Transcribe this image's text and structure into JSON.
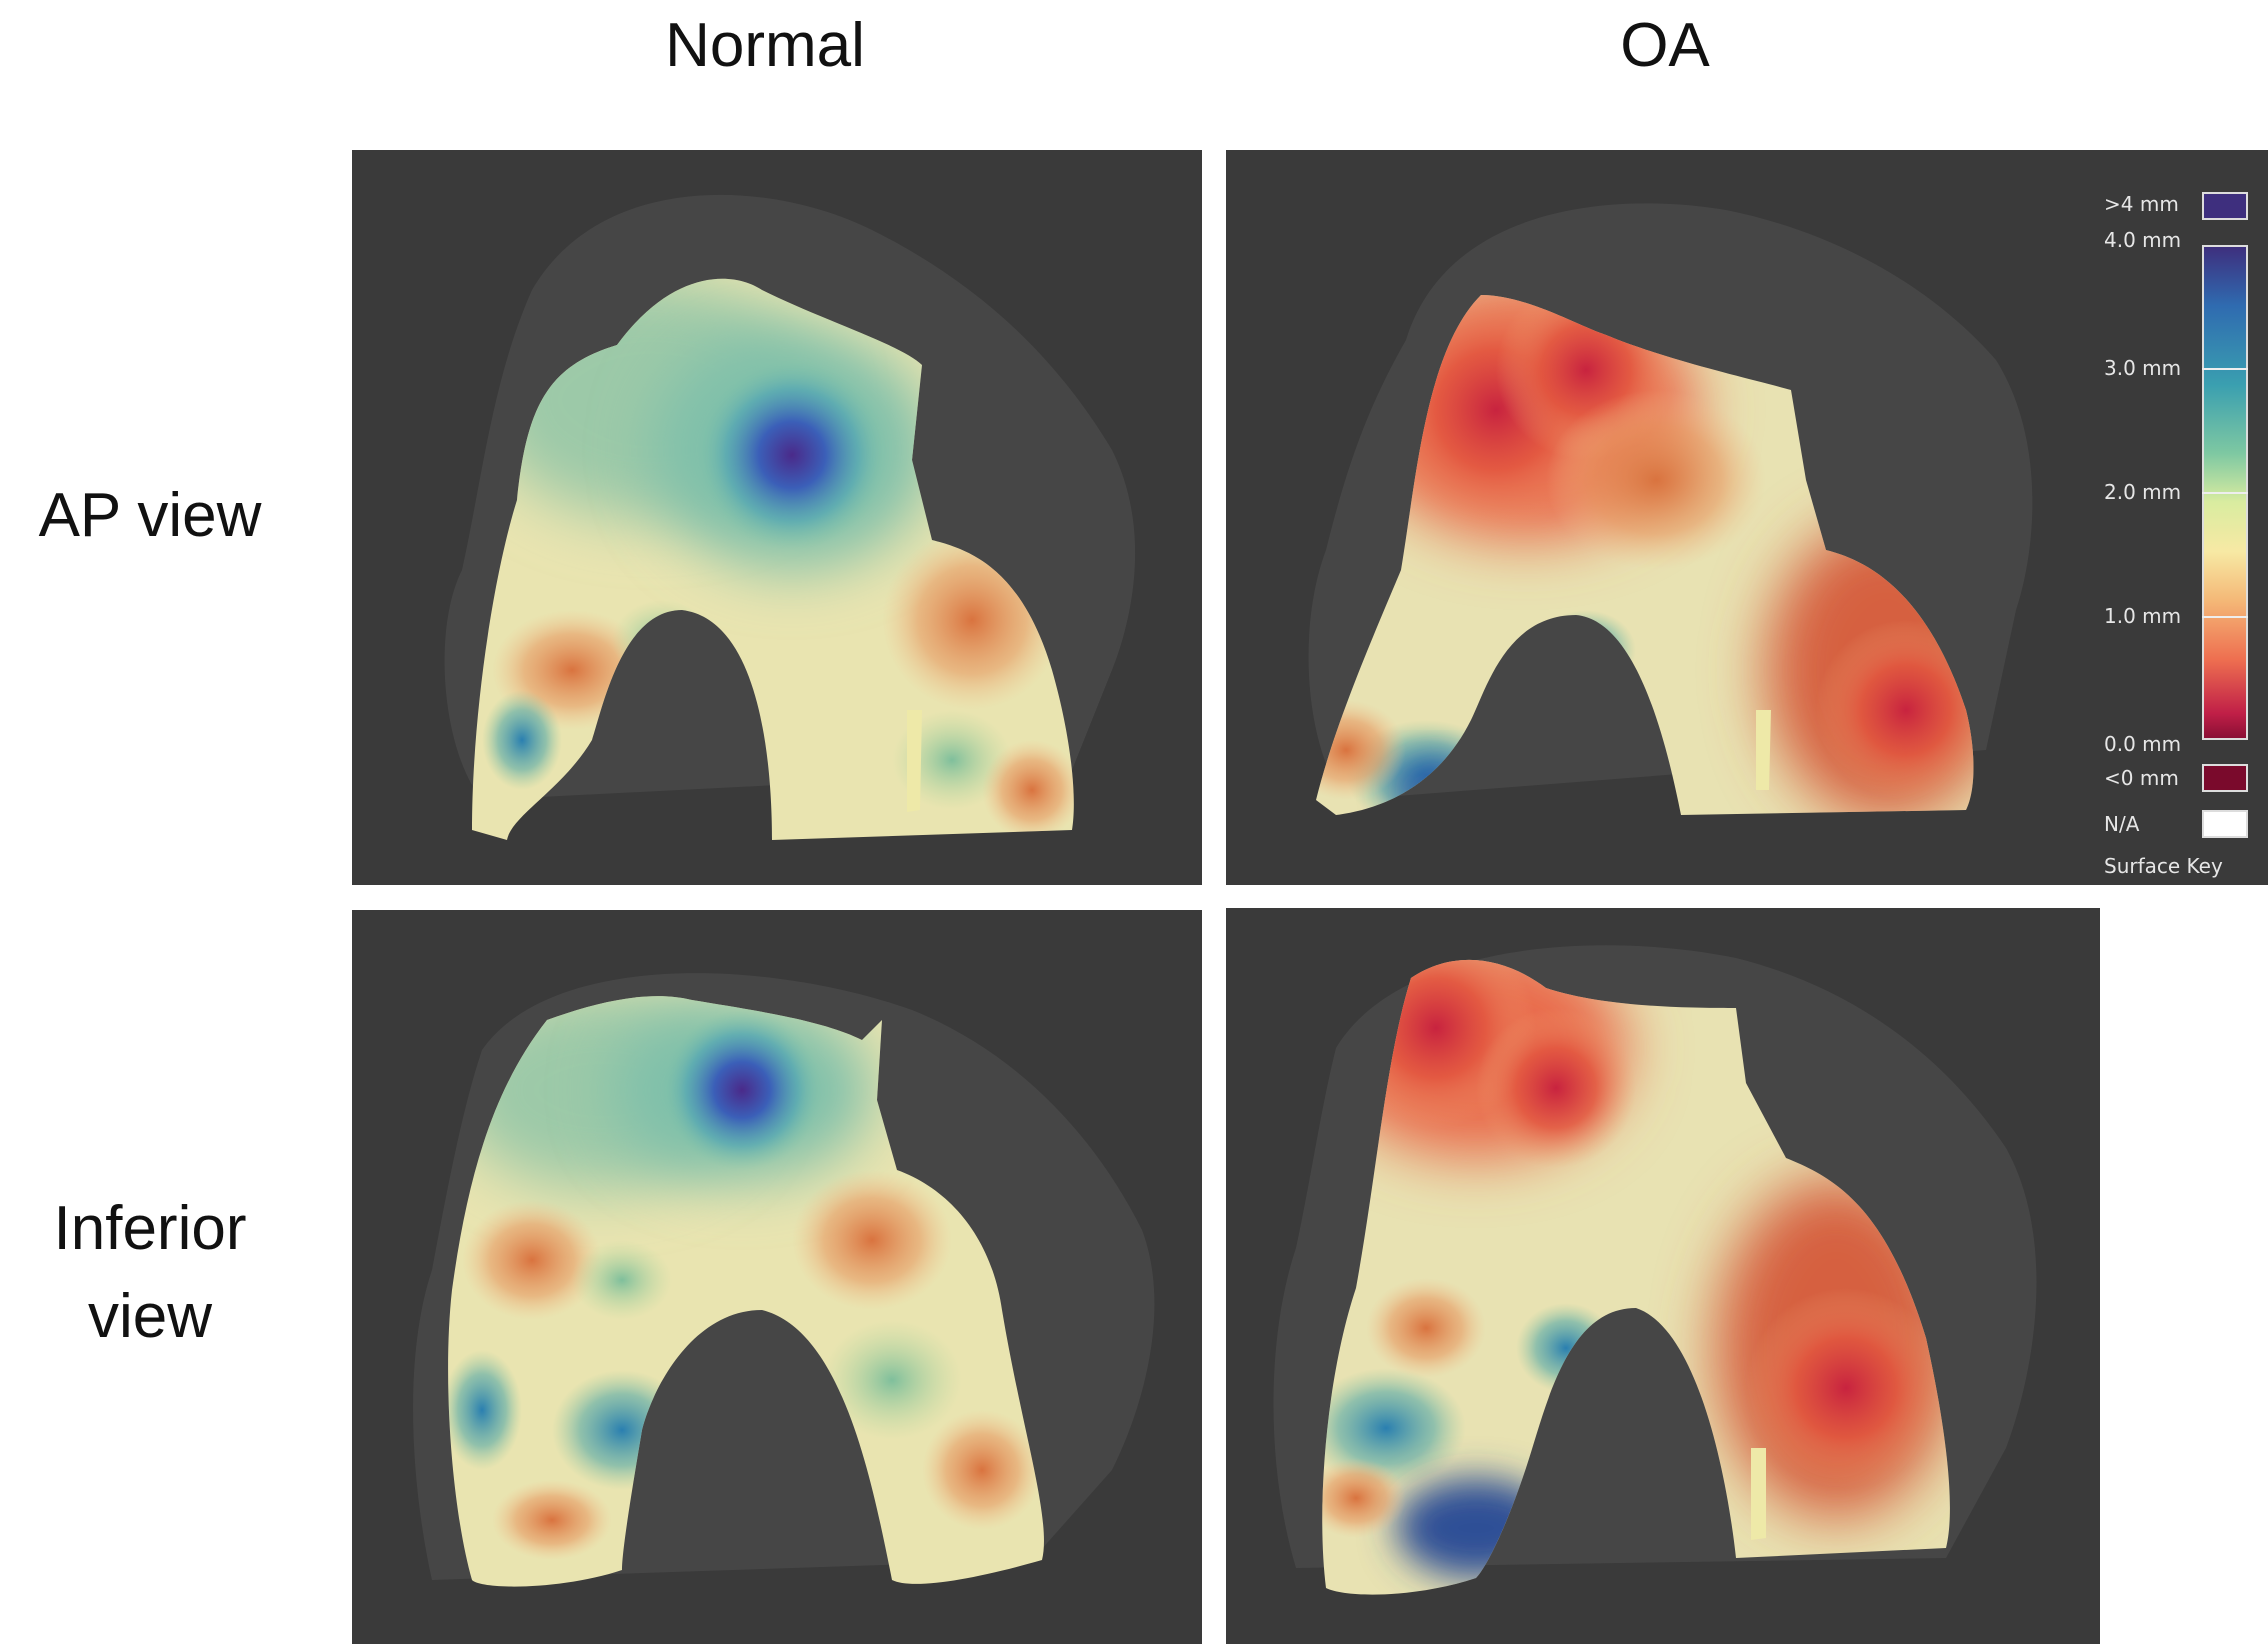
{
  "columns": {
    "normal": "Normal",
    "oa": "OA"
  },
  "rows": {
    "ap": "AP view",
    "inferior_line1": "Inferior",
    "inferior_line2": "view"
  },
  "legend": {
    "over_max": ">4 mm",
    "t4": "4.0 mm",
    "t3": "3.0 mm",
    "t2": "2.0 mm",
    "t1": "1.0 mm",
    "t0": "0.0 mm",
    "under_min": "<0 mm",
    "na": "N/A",
    "caption": "Surface Key",
    "colors": {
      "over_max": "#3e2f7e",
      "under_min": "#7a0a2c",
      "na": "#ffffff"
    }
  }
}
